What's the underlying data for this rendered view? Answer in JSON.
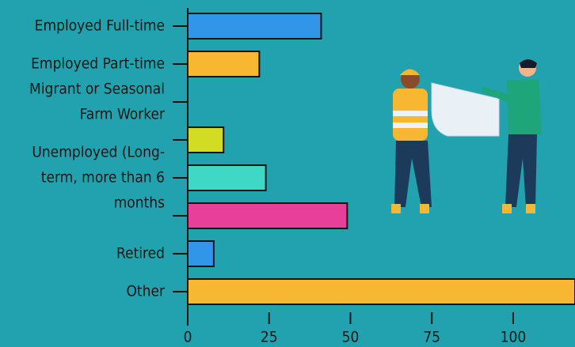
{
  "chart_data": {
    "type": "bar",
    "orientation": "horizontal",
    "categories": [
      [
        "Employed Full-time"
      ],
      [
        "Employed Part-time"
      ],
      [
        "Migrant or Seasonal",
        "Farm Worker"
      ],
      null,
      [
        "Unemployed (Long-",
        "term, more than 6",
        "months"
      ],
      null,
      [
        "Retired"
      ],
      [
        "Other"
      ]
    ],
    "values": [
      41,
      22,
      null,
      11,
      24,
      49,
      8,
      119
    ],
    "colors": [
      "#3296e8",
      "#f7b731",
      "#3296e8",
      "#d2dc22",
      "#3ed8c4",
      "#e8409a",
      "#3296e8",
      "#f7b731"
    ],
    "xlim": [
      0,
      119
    ],
    "xticks": [
      0,
      25,
      50,
      75,
      100
    ],
    "grid": false
  }
}
